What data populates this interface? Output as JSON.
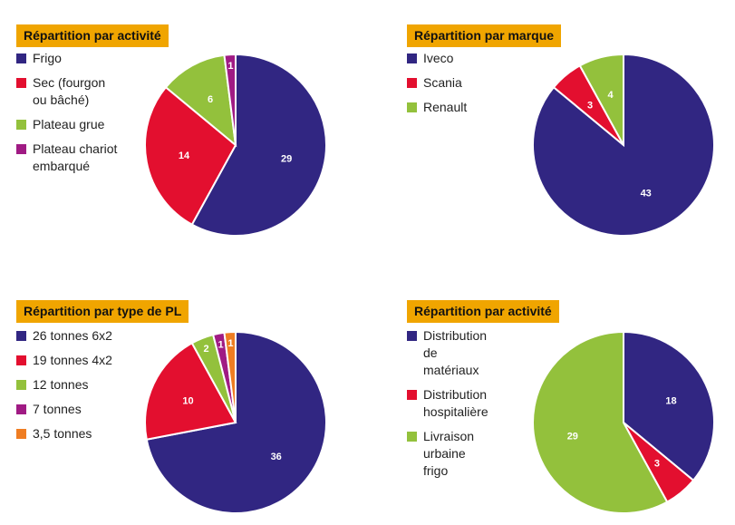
{
  "chart_data": [
    {
      "type": "pie",
      "title": "Répartition par activité",
      "categories": [
        "Frigo",
        "Sec (fourgon ou bâché)",
        "Plateau grue",
        "Plateau chariot embarqué"
      ],
      "legend_lines": [
        [
          "Frigo"
        ],
        [
          "Sec (fourgon",
          "ou bâché)"
        ],
        [
          "Plateau grue"
        ],
        [
          "Plateau chariot",
          "embarqué"
        ]
      ],
      "values": [
        29,
        14,
        6,
        1
      ],
      "value_labels": [
        "29",
        "14",
        "6",
        "1"
      ],
      "colors": [
        "#312682",
        "#e30f2f",
        "#93c13c",
        "#a01b84"
      ],
      "legend_position": "left"
    },
    {
      "type": "pie",
      "title": "Répartition par marque",
      "categories": [
        "Iveco",
        "Scania",
        "Renault"
      ],
      "legend_lines": [
        [
          "Iveco"
        ],
        [
          "Scania"
        ],
        [
          "Renault"
        ]
      ],
      "values": [
        43,
        3,
        4
      ],
      "value_labels": [
        "43",
        "3",
        "4"
      ],
      "colors": [
        "#312682",
        "#e30f2f",
        "#93c13c"
      ],
      "legend_position": "left"
    },
    {
      "type": "pie",
      "title": "Répartition par type de PL",
      "categories": [
        "26 tonnes 6x2",
        "19 tonnes 4x2",
        "12 tonnes",
        "7 tonnes",
        "3,5 tonnes"
      ],
      "legend_lines": [
        [
          "26 tonnes 6x2"
        ],
        [
          "19 tonnes 4x2"
        ],
        [
          "12 tonnes"
        ],
        [
          "7 tonnes"
        ],
        [
          "3,5 tonnes"
        ]
      ],
      "values": [
        36,
        10,
        2,
        1,
        1
      ],
      "value_labels": [
        "36",
        "10",
        "2",
        "1",
        "1"
      ],
      "colors": [
        "#312682",
        "#e30f2f",
        "#93c13c",
        "#a01b84",
        "#ef7d22"
      ],
      "legend_position": "left"
    },
    {
      "type": "pie",
      "title": "Répartition par activité",
      "categories": [
        "Distribution de matériaux",
        "Distribution hospitalière",
        "Livraison urbaine frigo"
      ],
      "legend_lines": [
        [
          "Distribution",
          "de matériaux"
        ],
        [
          "Distribution",
          "hospitalière"
        ],
        [
          "Livraison",
          "urbaine frigo"
        ]
      ],
      "values": [
        18,
        3,
        29
      ],
      "value_labels": [
        "18",
        "3",
        "29"
      ],
      "colors": [
        "#312682",
        "#e30f2f",
        "#93c13c"
      ],
      "legend_position": "left"
    }
  ]
}
